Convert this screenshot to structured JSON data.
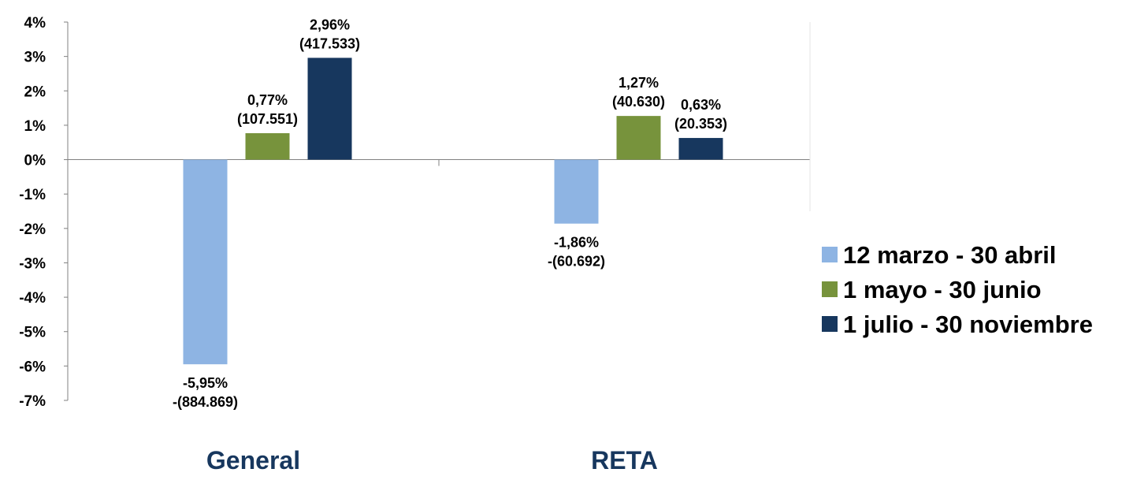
{
  "chart_data": {
    "type": "bar",
    "categories": [
      "General",
      "RETA"
    ],
    "series": [
      {
        "name": "12 marzo - 30 abril",
        "color": "#8EB4E3",
        "values": [
          -5.95,
          -1.86
        ],
        "labels": [
          "-5,95%",
          "-1,86%"
        ],
        "sublabels": [
          "-(884.869)",
          "-(60.692)"
        ]
      },
      {
        "name": "1 mayo - 30 junio",
        "color": "#77933C",
        "values": [
          0.77,
          1.27
        ],
        "labels": [
          "0,77%",
          "1,27%"
        ],
        "sublabels": [
          "(107.551)",
          "(40.630)"
        ]
      },
      {
        "name": "1 julio - 30 noviembre",
        "color": "#17375E",
        "values": [
          2.96,
          0.63
        ],
        "labels": [
          "2,96%",
          "0,63%"
        ],
        "sublabels": [
          "(417.533)",
          "(20.353)"
        ]
      }
    ],
    "ylim": [
      -7,
      4
    ],
    "yticks": [
      "4%",
      "3%",
      "2%",
      "1%",
      "0%",
      "-1%",
      "-2%",
      "-3%",
      "-4%",
      "-5%",
      "-6%",
      "-7%"
    ],
    "category_label_color": "#17375E",
    "grid": false,
    "legend_position": "right"
  }
}
